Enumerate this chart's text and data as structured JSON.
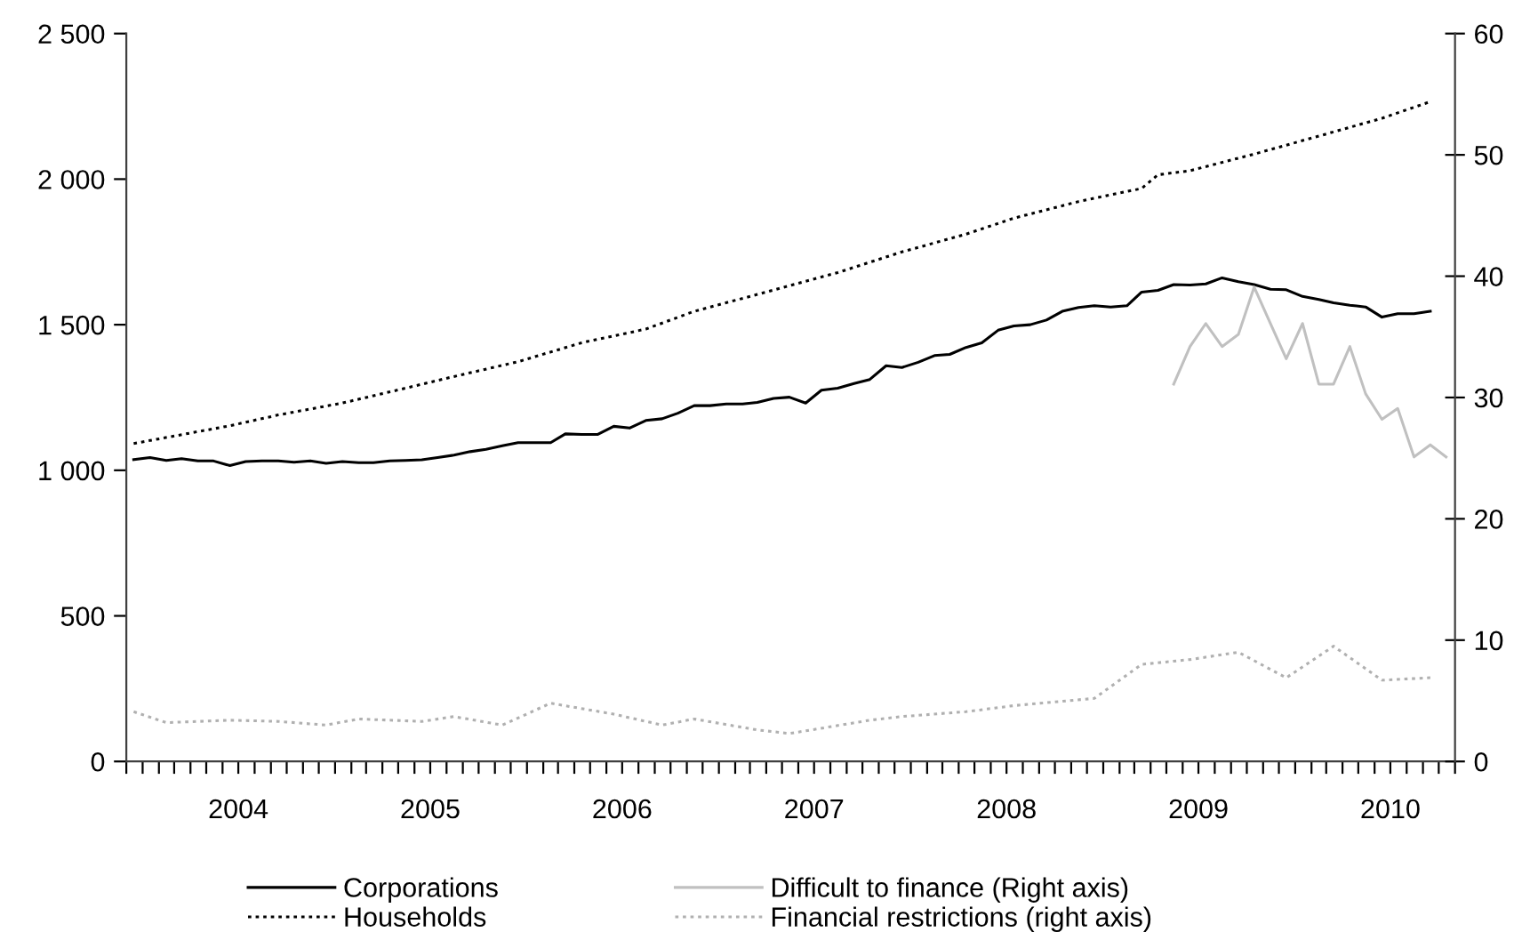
{
  "chart_data": {
    "type": "line",
    "legend": "bottom",
    "x": [
      "2003-12-15",
      "2004-01-15",
      "2004-02-15",
      "2004-03-15",
      "2004-04-15",
      "2004-05-15",
      "2004-06-15",
      "2004-07-15",
      "2004-08-15",
      "2004-09-15",
      "2004-10-15",
      "2004-11-15",
      "2004-12-15",
      "2005-01-15",
      "2005-02-15",
      "2005-03-15",
      "2005-04-15",
      "2005-05-15",
      "2005-06-15",
      "2005-07-15",
      "2005-08-15",
      "2005-09-15",
      "2005-10-15",
      "2005-11-15",
      "2005-12-15",
      "2006-01-15",
      "2006-02-15",
      "2006-03-15",
      "2006-04-15",
      "2006-05-15",
      "2006-06-15",
      "2006-07-15",
      "2006-08-15",
      "2006-09-15",
      "2006-10-15",
      "2006-11-15",
      "2006-12-15",
      "2007-01-15",
      "2007-02-15",
      "2007-03-15",
      "2007-04-15",
      "2007-05-15",
      "2007-06-15",
      "2007-07-15",
      "2007-08-15",
      "2007-09-15",
      "2007-10-15",
      "2007-11-15",
      "2007-12-15",
      "2008-01-15",
      "2008-02-15",
      "2008-03-15",
      "2008-04-15",
      "2008-05-15",
      "2008-06-15",
      "2008-07-15",
      "2008-08-15",
      "2008-09-15",
      "2008-10-15",
      "2008-11-15",
      "2008-12-15",
      "2009-01-15",
      "2009-02-15",
      "2009-03-15",
      "2009-04-15",
      "2009-05-15",
      "2009-06-15",
      "2009-07-15",
      "2009-08-15",
      "2009-09-15",
      "2009-10-15",
      "2009-11-15",
      "2009-12-15",
      "2010-01-15",
      "2010-02-15",
      "2010-03-15",
      "2010-04-15",
      "2010-05-15",
      "2010-06-15",
      "2010-07-15",
      "2010-08-15",
      "2010-09-15"
    ],
    "series": [
      {
        "name": "Corporations",
        "color": "#000000",
        "line_style": "solid",
        "values": [
          1037,
          1044,
          1034,
          1040,
          1032,
          1032,
          1016,
          1030,
          1032,
          1032,
          1028,
          1032,
          1024,
          1030,
          1026,
          1026,
          1032,
          1034,
          1036,
          1044,
          1052,
          1064,
          1072,
          1084,
          1095,
          1095,
          1095,
          1125,
          1123,
          1123,
          1151,
          1145,
          1171,
          1177,
          1196,
          1222,
          1222,
          1228,
          1228,
          1233,
          1247,
          1251,
          1231,
          1275,
          1282,
          1298,
          1312,
          1359,
          1353,
          1371,
          1394,
          1398,
          1422,
          1438,
          1481,
          1496,
          1500,
          1516,
          1546,
          1559,
          1565,
          1561,
          1565,
          1612,
          1618,
          1638,
          1636,
          1640,
          1661,
          1648,
          1638,
          1622,
          1620,
          1597,
          1587,
          1575,
          1567,
          1561,
          1526,
          1538,
          1538,
          1546
        ]
      },
      {
        "name": "Households",
        "color": "#000000",
        "line_style": "dotted",
        "x": [
          "2003-12-15",
          "2004-06-15",
          "2004-09-15",
          "2005-01-15",
          "2005-05-15",
          "2005-08-15",
          "2005-12-15",
          "2006-04-15",
          "2006-08-15",
          "2006-11-15",
          "2007-03-15",
          "2007-08-15",
          "2007-12-15",
          "2008-04-15",
          "2008-07-15",
          "2008-11-15",
          "2009-03-15",
          "2009-04-15",
          "2009-06-15",
          "2009-10-15",
          "2010-02-15",
          "2010-06-15",
          "2010-09-15"
        ],
        "values": [
          1092,
          1153,
          1190,
          1231,
          1282,
          1322,
          1373,
          1438,
          1485,
          1546,
          1604,
          1679,
          1750,
          1811,
          1866,
          1923,
          1968,
          2015,
          2029,
          2086,
          2148,
          2209,
          2266
        ]
      },
      {
        "name": "Difficult to finance (Right axis)",
        "color": "#c0c0c0",
        "line_style": "solid",
        "axis": "y2",
        "x": [
          "2009-05-15",
          "2009-06-15",
          "2009-07-15",
          "2009-08-15",
          "2009-09-15",
          "2009-10-15",
          "2009-11-15",
          "2009-12-15",
          "2010-01-15",
          "2010-02-15",
          "2010-03-15",
          "2010-04-15",
          "2010-05-15",
          "2010-06-15",
          "2010-07-15",
          "2010-08-15",
          "2010-09-15",
          "2010-10-15"
        ],
        "values": [
          31.1,
          34.2,
          36.1,
          34.2,
          35.2,
          39.1,
          36.1,
          33.2,
          36.1,
          31.1,
          31.1,
          34.2,
          30.3,
          28.2,
          29.1,
          25.1,
          26.1,
          25.1
        ]
      },
      {
        "name": "Financial restrictions (right axis)",
        "color": "#b0b0b0",
        "line_style": "dotted",
        "axis": "y2",
        "x": [
          "2003-12-15",
          "2004-02-15",
          "2004-06-15",
          "2004-09-15",
          "2004-12-15",
          "2005-02-15",
          "2005-06-15",
          "2005-08-15",
          "2005-11-15",
          "2006-02-15",
          "2006-06-15",
          "2006-09-15",
          "2006-11-15",
          "2007-03-15",
          "2007-05-15",
          "2007-10-15",
          "2007-12-15",
          "2008-04-15",
          "2008-07-15",
          "2008-12-15",
          "2009-03-15",
          "2009-06-15",
          "2009-09-15",
          "2009-12-15",
          "2010-03-15",
          "2010-06-15",
          "2010-09-15"
        ],
        "values": [
          4.1,
          3.2,
          3.4,
          3.3,
          3.0,
          3.5,
          3.3,
          3.7,
          3.0,
          4.8,
          3.9,
          3.0,
          3.5,
          2.6,
          2.3,
          3.4,
          3.7,
          4.1,
          4.6,
          5.2,
          8.0,
          8.4,
          9.0,
          6.9,
          9.5,
          6.7,
          6.9
        ]
      }
    ],
    "xlim": [
      "2003-12-01",
      "2010-11-01"
    ],
    "xticks": [
      {
        "value": "2003-12-01",
        "label": null
      },
      {
        "value": "2004-01-01",
        "label": null
      },
      {
        "value": "2004-02-01",
        "label": null
      },
      {
        "value": "2004-03-01",
        "label": null
      },
      {
        "value": "2004-04-01",
        "label": null
      },
      {
        "value": "2004-05-01",
        "label": null
      },
      {
        "value": "2004-06-01",
        "label": null
      },
      {
        "value": "2004-07-01",
        "label": "2004"
      },
      {
        "value": "2004-08-01",
        "label": null
      },
      {
        "value": "2004-09-01",
        "label": null
      },
      {
        "value": "2004-10-01",
        "label": null
      },
      {
        "value": "2004-11-01",
        "label": null
      },
      {
        "value": "2004-12-01",
        "label": null
      },
      {
        "value": "2005-01-01",
        "label": null
      },
      {
        "value": "2005-02-01",
        "label": null
      },
      {
        "value": "2005-03-01",
        "label": null
      },
      {
        "value": "2005-04-01",
        "label": null
      },
      {
        "value": "2005-05-01",
        "label": null
      },
      {
        "value": "2005-06-01",
        "label": null
      },
      {
        "value": "2005-07-01",
        "label": "2005"
      },
      {
        "value": "2005-08-01",
        "label": null
      },
      {
        "value": "2005-09-01",
        "label": null
      },
      {
        "value": "2005-10-01",
        "label": null
      },
      {
        "value": "2005-11-01",
        "label": null
      },
      {
        "value": "2005-12-01",
        "label": null
      },
      {
        "value": "2006-01-01",
        "label": null
      },
      {
        "value": "2006-02-01",
        "label": null
      },
      {
        "value": "2006-03-01",
        "label": null
      },
      {
        "value": "2006-04-01",
        "label": null
      },
      {
        "value": "2006-05-01",
        "label": null
      },
      {
        "value": "2006-06-01",
        "label": null
      },
      {
        "value": "2006-07-01",
        "label": "2006"
      },
      {
        "value": "2006-08-01",
        "label": null
      },
      {
        "value": "2006-09-01",
        "label": null
      },
      {
        "value": "2006-10-01",
        "label": null
      },
      {
        "value": "2006-11-01",
        "label": null
      },
      {
        "value": "2006-12-01",
        "label": null
      },
      {
        "value": "2007-01-01",
        "label": null
      },
      {
        "value": "2007-02-01",
        "label": null
      },
      {
        "value": "2007-03-01",
        "label": null
      },
      {
        "value": "2007-04-01",
        "label": null
      },
      {
        "value": "2007-05-01",
        "label": null
      },
      {
        "value": "2007-06-01",
        "label": null
      },
      {
        "value": "2007-07-01",
        "label": "2007"
      },
      {
        "value": "2007-08-01",
        "label": null
      },
      {
        "value": "2007-09-01",
        "label": null
      },
      {
        "value": "2007-10-01",
        "label": null
      },
      {
        "value": "2007-11-01",
        "label": null
      },
      {
        "value": "2007-12-01",
        "label": null
      },
      {
        "value": "2008-01-01",
        "label": null
      },
      {
        "value": "2008-02-01",
        "label": null
      },
      {
        "value": "2008-03-01",
        "label": null
      },
      {
        "value": "2008-04-01",
        "label": null
      },
      {
        "value": "2008-05-01",
        "label": null
      },
      {
        "value": "2008-06-01",
        "label": null
      },
      {
        "value": "2008-07-01",
        "label": "2008"
      },
      {
        "value": "2008-08-01",
        "label": null
      },
      {
        "value": "2008-09-01",
        "label": null
      },
      {
        "value": "2008-10-01",
        "label": null
      },
      {
        "value": "2008-11-01",
        "label": null
      },
      {
        "value": "2008-12-01",
        "label": null
      },
      {
        "value": "2009-01-01",
        "label": null
      },
      {
        "value": "2009-02-01",
        "label": null
      },
      {
        "value": "2009-03-01",
        "label": null
      },
      {
        "value": "2009-04-01",
        "label": null
      },
      {
        "value": "2009-05-01",
        "label": null
      },
      {
        "value": "2009-06-01",
        "label": null
      },
      {
        "value": "2009-07-01",
        "label": "2009"
      },
      {
        "value": "2009-08-01",
        "label": null
      },
      {
        "value": "2009-09-01",
        "label": null
      },
      {
        "value": "2009-10-01",
        "label": null
      },
      {
        "value": "2009-11-01",
        "label": null
      },
      {
        "value": "2009-12-01",
        "label": null
      },
      {
        "value": "2010-01-01",
        "label": null
      },
      {
        "value": "2010-02-01",
        "label": null
      },
      {
        "value": "2010-03-01",
        "label": null
      },
      {
        "value": "2010-04-01",
        "label": null
      },
      {
        "value": "2010-05-01",
        "label": null
      },
      {
        "value": "2010-06-01",
        "label": null
      },
      {
        "value": "2010-07-01",
        "label": "2010"
      },
      {
        "value": "2010-08-01",
        "label": null
      },
      {
        "value": "2010-09-01",
        "label": null
      },
      {
        "value": "2010-10-01",
        "label": null
      },
      {
        "value": "2010-11-01",
        "label": null
      }
    ],
    "ylim": [
      0,
      2500
    ],
    "yticks": [
      0,
      500,
      {
        "value": 1000,
        "label": "1 000"
      },
      {
        "value": 1500,
        "label": "1 500"
      },
      {
        "value": 2000,
        "label": "2 000"
      },
      {
        "value": 2500,
        "label": "2 500"
      }
    ],
    "y2lim": [
      0,
      60
    ],
    "y2ticks": [
      0,
      10,
      20,
      30,
      40,
      50,
      60
    ]
  }
}
